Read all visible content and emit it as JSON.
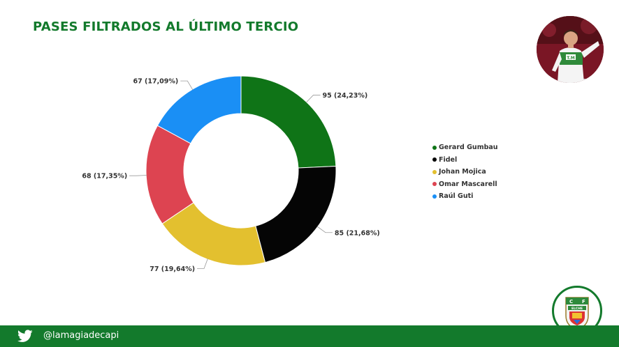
{
  "title": "PASES FILTRADOS AL ÚLTIMO TERCIO",
  "footer": {
    "handle": "@lamagiadecapi",
    "social_icon": "twitter-icon",
    "color": "#137a2c"
  },
  "photo": {
    "jersey_text": "T.M"
  },
  "badge": {
    "text": "ELCHE",
    "letters": [
      "C",
      "F"
    ]
  },
  "chart_data": {
    "type": "pie",
    "donut": true,
    "legend_position": "right",
    "slices": [
      {
        "name": "Gerard Gumbau",
        "value": 95,
        "label": "95 (24,23%)",
        "color": "#0f7417"
      },
      {
        "name": "Fidel",
        "value": 85,
        "label": "85 (21,68%)",
        "color": "#050505"
      },
      {
        "name": "Johan Mojica",
        "value": 77,
        "label": "77 (19,64%)",
        "color": "#e3c02f"
      },
      {
        "name": "Omar Mascarell",
        "value": 68,
        "label": "68 (17,35%)",
        "color": "#dd4451"
      },
      {
        "name": "Raúl Guti",
        "value": 67,
        "label": "67 (17,09%)",
        "color": "#1a8ff5"
      }
    ]
  }
}
